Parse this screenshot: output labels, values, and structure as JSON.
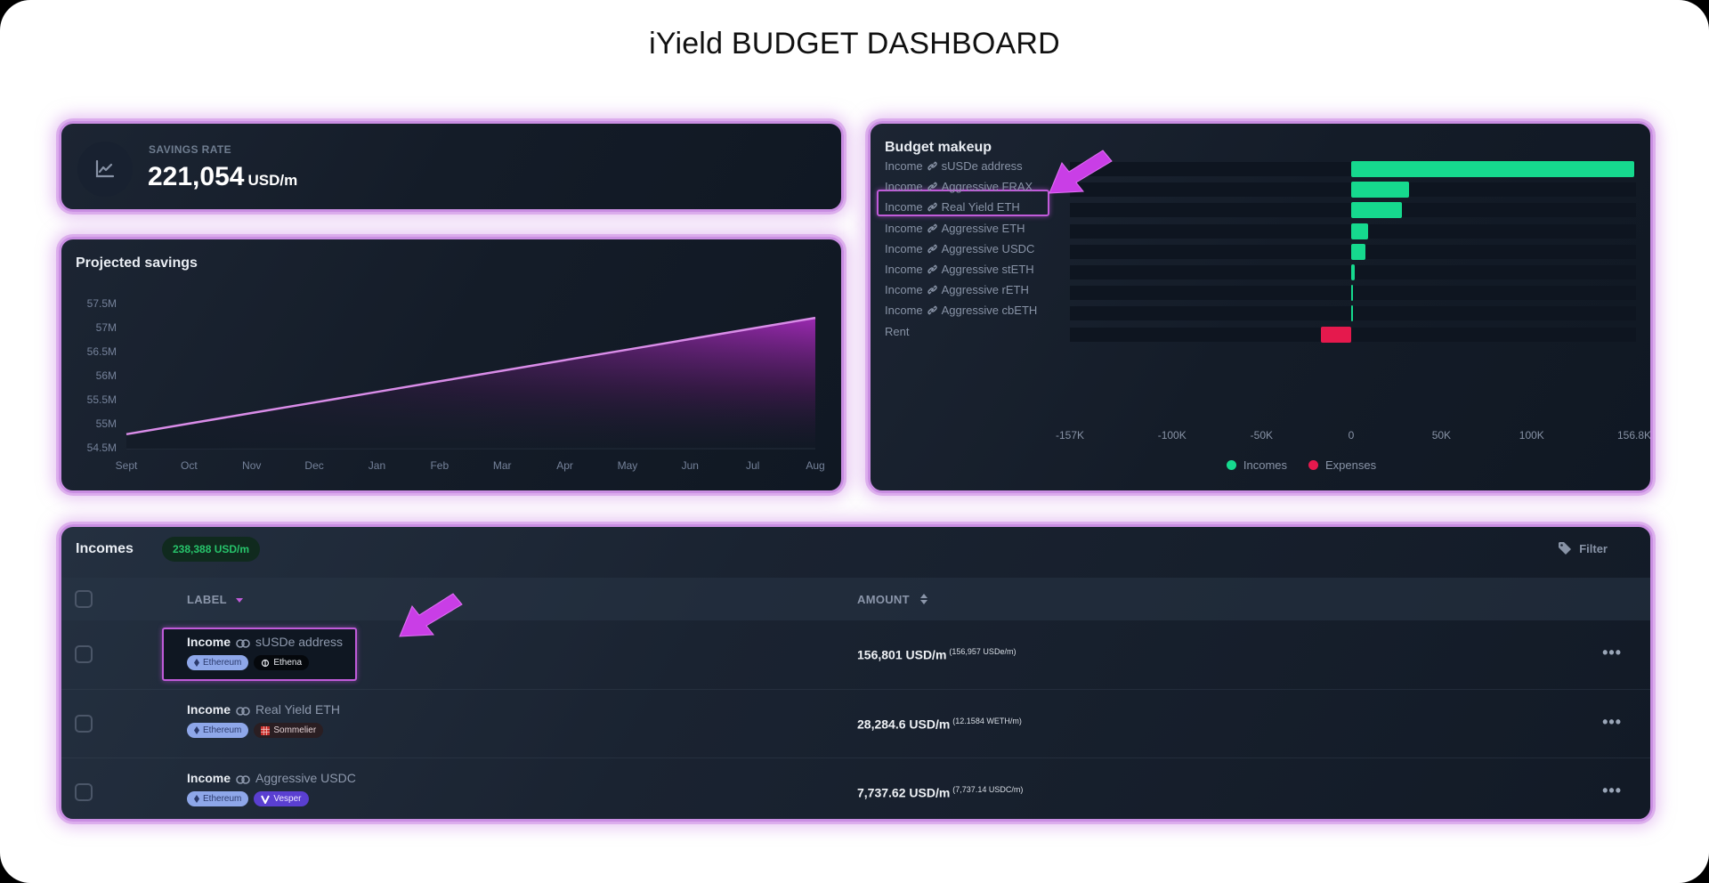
{
  "page": {
    "title": "iYield BUDGET DASHBOARD"
  },
  "colors": {
    "accent": "#c05bd9",
    "income": "#16d98e",
    "expense": "#e5194d",
    "card_glow": "#c98ee2",
    "badge_green": "#27c46b"
  },
  "savings_rate": {
    "label": "SAVINGS RATE",
    "value": "221,054",
    "unit": "USD/m",
    "icon": "line-chart-icon"
  },
  "projected_savings": {
    "title": "Projected savings"
  },
  "budget_makeup": {
    "title": "Budget makeup",
    "legend": {
      "incomes": "Incomes",
      "expenses": "Expenses"
    }
  },
  "incomes": {
    "title": "Incomes",
    "total_badge": "238,388 USD/m",
    "filter_label": "Filter",
    "columns": {
      "label": "LABEL",
      "amount": "AMOUNT"
    },
    "rows": [
      {
        "type": "Income",
        "name": "sUSDe address",
        "tags": [
          "Ethereum",
          "Ethena"
        ],
        "amount": "156,801 USD/m",
        "native": "(156,957 USDe/m)",
        "highlighted": true
      },
      {
        "type": "Income",
        "name": "Real Yield ETH",
        "tags": [
          "Ethereum",
          "Sommelier"
        ],
        "amount": "28,284.6 USD/m",
        "native": "(12.1584 WETH/m)"
      },
      {
        "type": "Income",
        "name": "Aggressive USDC",
        "tags": [
          "Ethereum",
          "Vesper"
        ],
        "amount": "7,737.62 USD/m",
        "native": "(7,737.14 USDC/m)"
      }
    ],
    "more_label": "•••"
  },
  "chart_data": [
    {
      "type": "area",
      "title": "Projected savings",
      "xlabel": "",
      "ylabel": "",
      "categories": [
        "Sept",
        "Oct",
        "Nov",
        "Dec",
        "Jan",
        "Feb",
        "Mar",
        "Apr",
        "May",
        "Jun",
        "Jul",
        "Aug"
      ],
      "values": [
        54.8,
        55.02,
        55.24,
        55.46,
        55.68,
        55.9,
        56.12,
        56.34,
        56.56,
        56.78,
        57.0,
        57.22
      ],
      "unit": "M",
      "ytick_labels": [
        "54.5M",
        "55M",
        "55.5M",
        "56M",
        "56.5M",
        "57M",
        "57.5M"
      ],
      "ylim": [
        54.5,
        57.5
      ],
      "grid": false,
      "legend": "none"
    },
    {
      "type": "bar",
      "orientation": "horizontal",
      "title": "Budget makeup",
      "categories": [
        "Income 🔗 sUSDe address",
        "Income 🔗 Aggressive FRAX",
        "Income 🔗 Real Yield ETH",
        "Income 🔗 Aggressive ETH",
        "Income 🔗 Aggressive USDC",
        "Income 🔗 Aggressive stETH",
        "Income 🔗 Aggressive rETH",
        "Income 🔗 Aggressive cbETH",
        "Rent"
      ],
      "series": [
        {
          "name": "Incomes",
          "color": "#16d98e",
          "values": [
            156801,
            32000,
            28285,
            9500,
            7738,
            2200,
            600,
            500,
            0
          ]
        },
        {
          "name": "Expenses",
          "color": "#e5194d",
          "values": [
            0,
            0,
            0,
            0,
            0,
            0,
            0,
            0,
            -17000
          ]
        }
      ],
      "xtick_labels": [
        "-157K",
        "-100K",
        "-50K",
        "0",
        "50K",
        "100K",
        "156.8K"
      ],
      "xlim": [
        -157000,
        156800
      ],
      "legend_position": "bottom"
    }
  ]
}
